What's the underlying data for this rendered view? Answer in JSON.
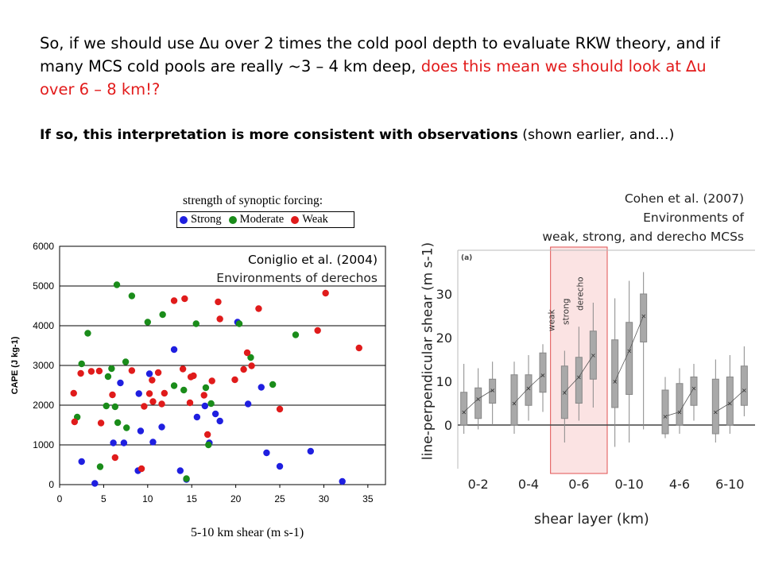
{
  "slide": {
    "intro_parts": [
      "So, if we should use ∆u over 2 times the cold pool depth to evaluate RKW theory, and if many MCS cold pools are really ~3 – 4 km deep, ",
      "does this mean we should look at ∆u over 6 – 8 km!?"
    ],
    "followup_bold": "If so, this interpretation is more consistent with observations",
    "followup_rest": " (shown earlier, and…)"
  },
  "colors": {
    "strong": "#1f1fe0",
    "moderate": "#1a8c1a",
    "weak": "#e01b1b",
    "highlight_fill": "#fbe3e3",
    "highlight_edge": "#e05050"
  },
  "chart_data": [
    {
      "type": "scatter",
      "legend_title": "strength of synoptic forcing:",
      "legend": [
        "Strong",
        "Moderate",
        "Weak"
      ],
      "ref_line1": "Coniglio et al. (2004)",
      "ref_line2": "Environments of derechos",
      "xlabel": "5-10 km shear (m s-1)",
      "ylabel": "CAPE (J kg-1)",
      "xlim": [
        0,
        37
      ],
      "ylim": [
        0,
        6000
      ],
      "xticks": [
        0,
        5,
        10,
        15,
        20,
        25,
        30,
        35
      ],
      "yticks": [
        0,
        1000,
        2000,
        3000,
        4000,
        5000,
        6000
      ],
      "grid": "horizontal",
      "series": [
        {
          "name": "Strong",
          "points": [
            [
              2.5,
              580
            ],
            [
              4.0,
              30
            ],
            [
              6.1,
              1050
            ],
            [
              6.9,
              2560
            ],
            [
              7.3,
              1050
            ],
            [
              8.9,
              350
            ],
            [
              9.0,
              2290
            ],
            [
              9.2,
              1350
            ],
            [
              10.2,
              2790
            ],
            [
              10.6,
              1070
            ],
            [
              11.6,
              1450
            ],
            [
              13.0,
              3400
            ],
            [
              13.7,
              350
            ],
            [
              14.4,
              130
            ],
            [
              15.6,
              1700
            ],
            [
              16.5,
              1980
            ],
            [
              17.0,
              1050
            ],
            [
              17.7,
              1780
            ],
            [
              18.2,
              1600
            ],
            [
              20.2,
              4090
            ],
            [
              21.4,
              2030
            ],
            [
              22.9,
              2450
            ],
            [
              23.5,
              800
            ],
            [
              25.0,
              460
            ],
            [
              28.5,
              840
            ],
            [
              32.1,
              80
            ]
          ]
        },
        {
          "name": "Moderate",
          "points": [
            [
              2.0,
              1700
            ],
            [
              2.5,
              3040
            ],
            [
              3.2,
              3810
            ],
            [
              4.6,
              450
            ],
            [
              5.3,
              1980
            ],
            [
              5.5,
              2720
            ],
            [
              5.9,
              2920
            ],
            [
              6.3,
              1960
            ],
            [
              6.5,
              5030
            ],
            [
              6.6,
              1560
            ],
            [
              7.5,
              3090
            ],
            [
              7.6,
              1430
            ],
            [
              8.2,
              4750
            ],
            [
              10.0,
              4090
            ],
            [
              11.7,
              4280
            ],
            [
              13.0,
              2490
            ],
            [
              14.1,
              2380
            ],
            [
              14.4,
              150
            ],
            [
              15.5,
              4050
            ],
            [
              16.6,
              2440
            ],
            [
              16.9,
              1000
            ],
            [
              17.2,
              2040
            ],
            [
              20.4,
              4050
            ],
            [
              21.7,
              3200
            ],
            [
              24.2,
              2520
            ],
            [
              26.8,
              3770
            ]
          ]
        },
        {
          "name": "Weak",
          "points": [
            [
              1.6,
              2300
            ],
            [
              1.7,
              1580
            ],
            [
              2.4,
              2800
            ],
            [
              3.6,
              2850
            ],
            [
              4.5,
              2860
            ],
            [
              4.7,
              1550
            ],
            [
              6.0,
              2260
            ],
            [
              6.3,
              680
            ],
            [
              8.2,
              2870
            ],
            [
              9.3,
              400
            ],
            [
              9.6,
              1970
            ],
            [
              10.2,
              2290
            ],
            [
              10.5,
              2630
            ],
            [
              10.6,
              2090
            ],
            [
              11.2,
              2820
            ],
            [
              11.6,
              2030
            ],
            [
              11.9,
              2300
            ],
            [
              13.0,
              4630
            ],
            [
              14.0,
              2910
            ],
            [
              14.2,
              4680
            ],
            [
              14.8,
              2060
            ],
            [
              14.9,
              2710
            ],
            [
              15.2,
              2740
            ],
            [
              16.4,
              2250
            ],
            [
              16.8,
              1260
            ],
            [
              17.3,
              2610
            ],
            [
              18.0,
              4600
            ],
            [
              18.2,
              4170
            ],
            [
              19.9,
              2640
            ],
            [
              20.9,
              2900
            ],
            [
              21.3,
              3320
            ],
            [
              21.8,
              2990
            ],
            [
              22.6,
              4430
            ],
            [
              25.0,
              1900
            ],
            [
              29.3,
              3880
            ],
            [
              30.2,
              4820
            ],
            [
              34.0,
              3440
            ]
          ]
        }
      ]
    },
    {
      "type": "box",
      "ref_line1": "Cohen et al. (2007)",
      "ref_line2": "Environments of",
      "ref_line3": "weak, strong, and derecho MCSs",
      "panel_label": "(a)",
      "xlabel": "shear layer (km)",
      "ylabel": "line-perpendicular shear (m s-1)",
      "ylim": [
        -10,
        40
      ],
      "yticks": [
        0,
        10,
        20,
        30
      ],
      "categories": [
        "0-2",
        "0-4",
        "0-6",
        "0-10",
        "4-6",
        "6-10"
      ],
      "highlight_category": "0-6",
      "series_labels": [
        "weak",
        "strong",
        "derecho"
      ],
      "boxes": [
        [
          [
            -2,
            0,
            7.5,
            3,
            14
          ],
          [
            -1,
            1.5,
            8.5,
            6,
            13
          ],
          [
            0,
            5,
            10.5,
            8,
            14.5
          ]
        ],
        [
          [
            -2,
            0,
            11.5,
            5,
            14.5
          ],
          [
            1,
            4.5,
            11.5,
            8.5,
            16
          ],
          [
            3,
            7.5,
            16.5,
            11.5,
            18.5
          ]
        ],
        [
          [
            -4,
            1.5,
            13.5,
            7.5,
            17
          ],
          [
            1,
            5,
            15.5,
            11,
            22.5
          ],
          [
            4,
            10.5,
            21.5,
            16,
            28
          ]
        ],
        [
          [
            -5,
            4,
            19.5,
            10,
            29
          ],
          [
            -4,
            7,
            23.5,
            17,
            33
          ],
          [
            -1,
            19,
            30,
            25,
            35
          ]
        ],
        [
          [
            -3,
            -2,
            8,
            2,
            11
          ],
          [
            -2,
            0,
            9.5,
            3,
            13
          ],
          [
            1,
            4.5,
            11,
            8.5,
            14
          ]
        ],
        [
          [
            -4,
            -2,
            10.5,
            3,
            15
          ],
          [
            -2,
            0,
            11,
            5,
            16
          ],
          [
            2,
            4.5,
            13.5,
            8,
            18
          ]
        ]
      ]
    }
  ]
}
